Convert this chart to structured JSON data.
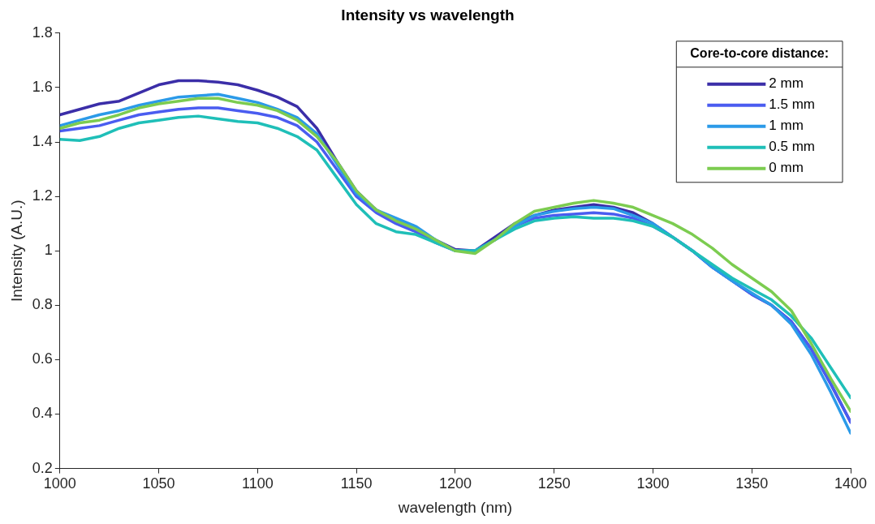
{
  "chart_data": {
    "type": "line",
    "title": "Intensity vs wavelength",
    "xlabel": "wavelength (nm)",
    "ylabel": "Intensity (A.U.)",
    "legend_title": "Core-to-core distance:",
    "x": [
      1000,
      1010,
      1020,
      1030,
      1040,
      1050,
      1060,
      1070,
      1080,
      1090,
      1100,
      1110,
      1120,
      1130,
      1140,
      1150,
      1160,
      1170,
      1180,
      1190,
      1200,
      1210,
      1220,
      1230,
      1240,
      1250,
      1260,
      1270,
      1280,
      1290,
      1300,
      1310,
      1320,
      1330,
      1340,
      1350,
      1360,
      1370,
      1380,
      1390,
      1400
    ],
    "xlim": [
      1000,
      1400
    ],
    "xticks": [
      1000,
      1050,
      1100,
      1150,
      1200,
      1250,
      1300,
      1350,
      1400
    ],
    "ylim": [
      0.2,
      1.8
    ],
    "yticks": [
      0.2,
      0.4,
      0.6,
      0.8,
      1,
      1.2,
      1.4,
      1.6,
      1.8
    ],
    "grid": false,
    "legend": "top right",
    "marker": "none",
    "line_style": "solid",
    "series": [
      {
        "name": "2 mm",
        "color": "#3b2ea8",
        "values": [
          1.5,
          1.52,
          1.54,
          1.55,
          1.58,
          1.61,
          1.625,
          1.625,
          1.62,
          1.61,
          1.59,
          1.565,
          1.53,
          1.45,
          1.33,
          1.22,
          1.15,
          1.11,
          1.08,
          1.04,
          1.005,
          1.0,
          1.05,
          1.1,
          1.13,
          1.15,
          1.16,
          1.17,
          1.16,
          1.14,
          1.1,
          1.05,
          1.0,
          0.94,
          0.89,
          0.84,
          0.8,
          0.74,
          0.64,
          0.51,
          0.37
        ]
      },
      {
        "name": "1.5 mm",
        "color": "#4a5cf0",
        "values": [
          1.44,
          1.45,
          1.46,
          1.48,
          1.5,
          1.51,
          1.52,
          1.525,
          1.525,
          1.515,
          1.505,
          1.49,
          1.46,
          1.4,
          1.3,
          1.2,
          1.14,
          1.1,
          1.07,
          1.03,
          1.0,
          1.0,
          1.04,
          1.09,
          1.12,
          1.13,
          1.135,
          1.14,
          1.135,
          1.12,
          1.09,
          1.05,
          1.0,
          0.94,
          0.89,
          0.84,
          0.8,
          0.74,
          0.64,
          0.51,
          0.37
        ]
      },
      {
        "name": "1 mm",
        "color": "#2b9ae8",
        "values": [
          1.46,
          1.48,
          1.5,
          1.515,
          1.535,
          1.55,
          1.565,
          1.57,
          1.575,
          1.56,
          1.545,
          1.52,
          1.49,
          1.43,
          1.32,
          1.21,
          1.15,
          1.12,
          1.09,
          1.04,
          1.0,
          1.0,
          1.04,
          1.09,
          1.13,
          1.145,
          1.155,
          1.16,
          1.155,
          1.13,
          1.1,
          1.05,
          1.0,
          0.94,
          0.89,
          0.845,
          0.8,
          0.73,
          0.62,
          0.48,
          0.33
        ]
      },
      {
        "name": "0.5 mm",
        "color": "#1fbfb8",
        "values": [
          1.41,
          1.405,
          1.42,
          1.45,
          1.47,
          1.48,
          1.49,
          1.495,
          1.485,
          1.475,
          1.47,
          1.45,
          1.42,
          1.37,
          1.27,
          1.17,
          1.1,
          1.07,
          1.06,
          1.03,
          1.0,
          1.0,
          1.04,
          1.08,
          1.11,
          1.12,
          1.125,
          1.12,
          1.12,
          1.11,
          1.09,
          1.05,
          1.0,
          0.95,
          0.9,
          0.86,
          0.82,
          0.76,
          0.68,
          0.57,
          0.46
        ]
      },
      {
        "name": "0 mm",
        "color": "#7ccc50",
        "values": [
          1.45,
          1.47,
          1.48,
          1.5,
          1.525,
          1.54,
          1.55,
          1.56,
          1.56,
          1.545,
          1.535,
          1.515,
          1.48,
          1.42,
          1.33,
          1.22,
          1.15,
          1.11,
          1.08,
          1.04,
          1.0,
          0.99,
          1.04,
          1.1,
          1.145,
          1.16,
          1.175,
          1.185,
          1.175,
          1.16,
          1.13,
          1.1,
          1.06,
          1.01,
          0.95,
          0.9,
          0.85,
          0.78,
          0.66,
          0.53,
          0.41
        ]
      }
    ]
  }
}
